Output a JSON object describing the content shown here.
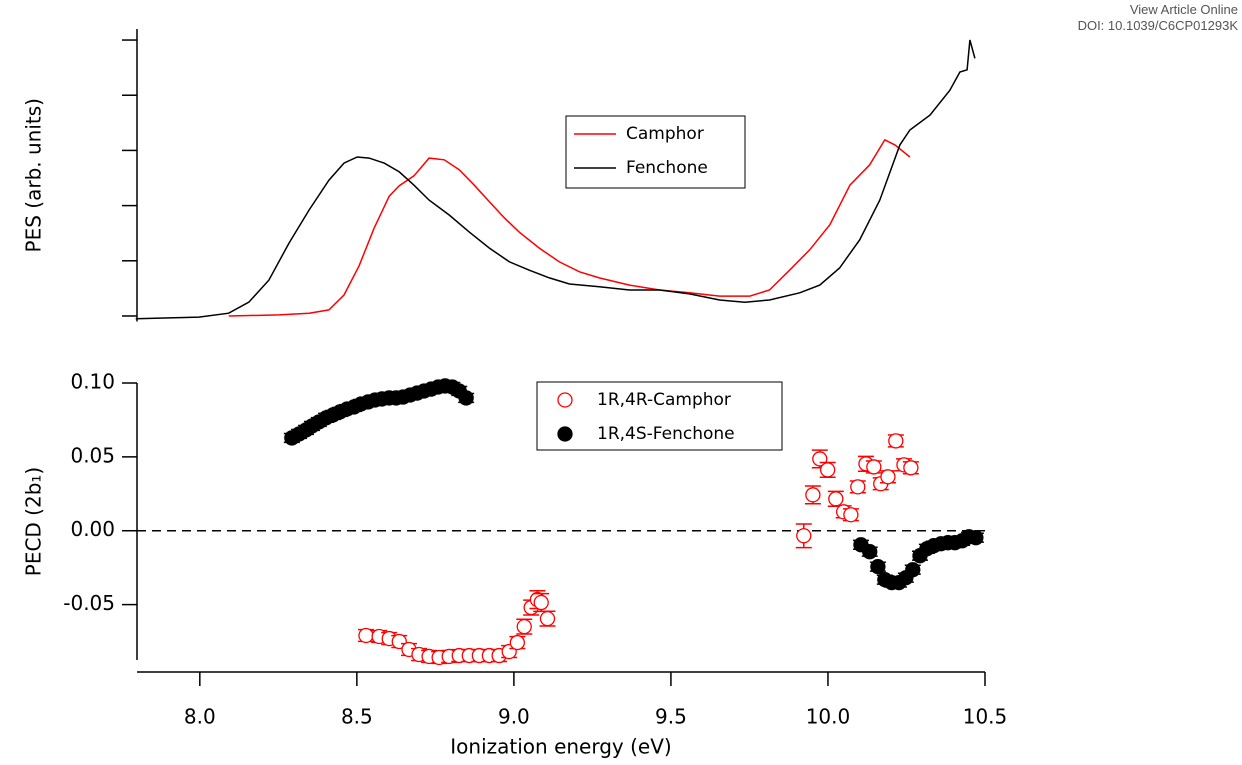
{
  "header": {
    "link": "View Article Online",
    "doi": "DOI: 10.1039/C6CP01293K"
  },
  "chart_data": [
    {
      "type": "line",
      "ylabel": "PES (arb. units)",
      "xlim": [
        7.8,
        10.5
      ],
      "ylim": [
        -0.1,
        5.2
      ],
      "yticks": [
        0,
        1,
        2,
        3,
        4,
        5
      ],
      "show_ytick_labels": false,
      "series": [
        {
          "name": "Camphor",
          "color": "#ff0000",
          "x": [
            8.092,
            8.252,
            8.348,
            8.411,
            8.459,
            8.507,
            8.555,
            8.603,
            8.635,
            8.682,
            8.73,
            8.778,
            8.826,
            8.874,
            8.922,
            8.969,
            9.017,
            9.081,
            9.145,
            9.209,
            9.272,
            9.368,
            9.464,
            9.559,
            9.655,
            9.751,
            9.814,
            9.878,
            9.942,
            10.006,
            10.07,
            10.133,
            10.181,
            10.213,
            10.261
          ],
          "values": [
            0.0,
            0.02,
            0.05,
            0.11,
            0.38,
            0.91,
            1.59,
            2.17,
            2.36,
            2.54,
            2.86,
            2.83,
            2.65,
            2.37,
            2.07,
            1.78,
            1.52,
            1.23,
            0.98,
            0.8,
            0.69,
            0.56,
            0.47,
            0.42,
            0.36,
            0.36,
            0.47,
            0.83,
            1.2,
            1.65,
            2.37,
            2.74,
            3.19,
            3.1,
            2.88
          ]
        },
        {
          "name": "Fenchone",
          "color": "#000000",
          "x": [
            7.796,
            7.997,
            8.092,
            8.156,
            8.22,
            8.284,
            8.348,
            8.411,
            8.459,
            8.501,
            8.539,
            8.587,
            8.635,
            8.682,
            8.73,
            8.794,
            8.858,
            8.922,
            8.986,
            9.049,
            9.113,
            9.177,
            9.272,
            9.368,
            9.464,
            9.559,
            9.655,
            9.735,
            9.814,
            9.91,
            9.974,
            10.037,
            10.101,
            10.165,
            10.229,
            10.261,
            10.325,
            10.388,
            10.42,
            10.443,
            10.452,
            10.468
          ],
          "values": [
            -0.05,
            -0.02,
            0.05,
            0.25,
            0.65,
            1.32,
            1.92,
            2.46,
            2.77,
            2.88,
            2.86,
            2.77,
            2.61,
            2.37,
            2.1,
            1.83,
            1.52,
            1.23,
            0.98,
            0.83,
            0.69,
            0.58,
            0.53,
            0.47,
            0.47,
            0.4,
            0.29,
            0.25,
            0.29,
            0.42,
            0.56,
            0.87,
            1.38,
            2.1,
            3.1,
            3.37,
            3.64,
            4.09,
            4.42,
            4.46,
            5.0,
            4.67
          ]
        }
      ]
    },
    {
      "type": "scatter",
      "xlabel": "Ionization energy (eV)",
      "ylabel": "PECD (2b₁)",
      "xlim": [
        7.8,
        10.5
      ],
      "ylim": [
        -0.0875,
        0.1
      ],
      "xticks": [
        {
          "value": 8.0,
          "label": "8.0"
        },
        8.5,
        {
          "value": 9.0,
          "label": "9.0"
        },
        9.5,
        {
          "value": 10.0,
          "label": "10.0"
        },
        10.5
      ],
      "yticks": [
        {
          "value": -0.05,
          "label": "-0.05"
        },
        {
          "value": 0,
          "label": "0.00"
        },
        {
          "value": 0.05,
          "label": "0.05"
        },
        {
          "value": 0.1,
          "label": "0.10"
        }
      ],
      "reference_line": 0,
      "series": [
        {
          "name": "1R,4R-Camphor",
          "color": "#ff0000",
          "filled": false,
          "x": [
            8.529,
            8.571,
            8.603,
            8.635,
            8.666,
            8.698,
            8.73,
            8.762,
            8.794,
            8.826,
            8.858,
            8.89,
            8.922,
            8.953,
            8.985,
            9.011,
            9.033,
            9.055,
            9.075,
            9.087,
            9.107,
            9.923,
            9.952,
            9.974,
            9.999,
            10.025,
            10.05,
            10.073,
            10.095,
            10.121,
            10.146,
            10.168,
            10.191,
            10.216,
            10.242,
            10.264
          ],
          "values": [
            -0.0709,
            -0.0716,
            -0.073,
            -0.075,
            -0.0804,
            -0.0838,
            -0.0851,
            -0.0858,
            -0.0851,
            -0.0845,
            -0.0845,
            -0.0845,
            -0.0845,
            -0.0845,
            -0.0818,
            -0.0757,
            -0.0649,
            -0.052,
            -0.0466,
            -0.0486,
            -0.0595,
            -0.0034,
            0.0243,
            0.0486,
            0.0412,
            0.0216,
            0.0128,
            0.0108,
            0.0297,
            0.0453,
            0.0432,
            0.0318,
            0.0365,
            0.0608,
            0.0446,
            0.0426
          ],
          "errors": [
            0.004,
            0.004,
            0.004,
            0.004,
            0.004,
            0.004,
            0.004,
            0.004,
            0.004,
            0.004,
            0.004,
            0.004,
            0.004,
            0.004,
            0.004,
            0.004,
            0.005,
            0.005,
            0.006,
            0.006,
            0.005,
            0.008,
            0.006,
            0.006,
            0.005,
            0.005,
            0.004,
            0.004,
            0.004,
            0.005,
            0.004,
            0.004,
            0.004,
            0.004,
            0.004,
            0.004
          ]
        },
        {
          "name": "1R,4S-Fenchone",
          "color": "#000000",
          "filled": true,
          "x": [
            8.293,
            8.316,
            8.338,
            8.357,
            8.379,
            8.402,
            8.424,
            8.446,
            8.469,
            8.491,
            8.513,
            8.536,
            8.558,
            8.58,
            8.603,
            8.625,
            8.647,
            8.67,
            8.692,
            8.714,
            8.737,
            8.759,
            8.781,
            8.804,
            8.826,
            8.848,
            10.105,
            10.133,
            10.159,
            10.181,
            10.203,
            10.226,
            10.248,
            10.27,
            10.293,
            10.315,
            10.337,
            10.36,
            10.382,
            10.404,
            10.427,
            10.449,
            10.471
          ],
          "values": [
            0.0628,
            0.0655,
            0.0682,
            0.0709,
            0.0736,
            0.0764,
            0.0784,
            0.0804,
            0.0824,
            0.0838,
            0.0858,
            0.0872,
            0.0885,
            0.0892,
            0.0899,
            0.0899,
            0.0905,
            0.0919,
            0.0932,
            0.0946,
            0.0959,
            0.0973,
            0.098,
            0.0973,
            0.0946,
            0.0899,
            -0.0095,
            -0.0142,
            -0.0243,
            -0.0331,
            -0.0351,
            -0.0351,
            -0.0318,
            -0.0264,
            -0.0169,
            -0.0122,
            -0.0101,
            -0.0088,
            -0.0081,
            -0.0081,
            -0.0068,
            -0.0041,
            -0.0047
          ],
          "errors": [
            0.003,
            0.003,
            0.003,
            0.003,
            0.003,
            0.003,
            0.003,
            0.003,
            0.003,
            0.003,
            0.003,
            0.003,
            0.003,
            0.003,
            0.003,
            0.003,
            0.003,
            0.003,
            0.003,
            0.003,
            0.003,
            0.003,
            0.003,
            0.003,
            0.003,
            0.003,
            0.003,
            0.003,
            0.003,
            0.003,
            0.003,
            0.003,
            0.003,
            0.003,
            0.003,
            0.003,
            0.003,
            0.003,
            0.003,
            0.003,
            0.003,
            0.003,
            0.003
          ]
        }
      ]
    }
  ]
}
